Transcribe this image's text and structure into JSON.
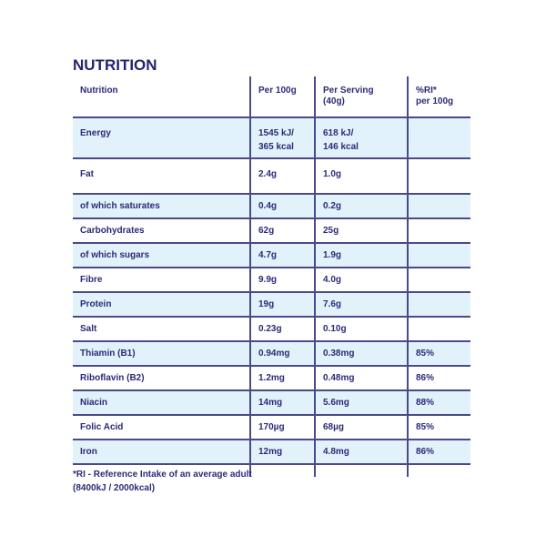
{
  "title": "NUTRITION",
  "headers": [
    "Nutrition",
    "Per 100g",
    "Per Serving\n(40g)",
    "%RI*\nper 100g"
  ],
  "rows": [
    {
      "name": "Energy",
      "per100": "1545 kJ/\n365 kcal",
      "serving": "618 kJ/\n146 kcal",
      "ri": ""
    },
    {
      "name": "Fat",
      "per100": "2.4g",
      "serving": "1.0g",
      "ri": ""
    },
    {
      "name": "of which saturates",
      "per100": "0.4g",
      "serving": "0.2g",
      "ri": ""
    },
    {
      "name": "Carbohydrates",
      "per100": "62g",
      "serving": "25g",
      "ri": ""
    },
    {
      "name": "of which sugars",
      "per100": "4.7g",
      "serving": "1.9g",
      "ri": ""
    },
    {
      "name": "Fibre",
      "per100": "9.9g",
      "serving": "4.0g",
      "ri": ""
    },
    {
      "name": "Protein",
      "per100": "19g",
      "serving": "7.6g",
      "ri": ""
    },
    {
      "name": "Salt",
      "per100": "0.23g",
      "serving": "0.10g",
      "ri": ""
    },
    {
      "name": "Thiamin (B1)",
      "per100": "0.94mg",
      "serving": "0.38mg",
      "ri": "85%"
    },
    {
      "name": "Riboflavin (B2)",
      "per100": "1.2mg",
      "serving": "0.48mg",
      "ri": "86%"
    },
    {
      "name": "Niacin",
      "per100": "14mg",
      "serving": "5.6mg",
      "ri": "88%"
    },
    {
      "name": "Folic Acid",
      "per100": "170µg",
      "serving": "68µg",
      "ri": "85%"
    },
    {
      "name": "Iron",
      "per100": "12mg",
      "serving": "4.8mg",
      "ri": "86%"
    }
  ],
  "footnote": "*RI - Reference Intake of an average adult (8400kJ / 2000kcal)",
  "colors": {
    "text": "#2b2a78",
    "shade": "#e2f2fa",
    "rule": "#4a4a8a"
  }
}
